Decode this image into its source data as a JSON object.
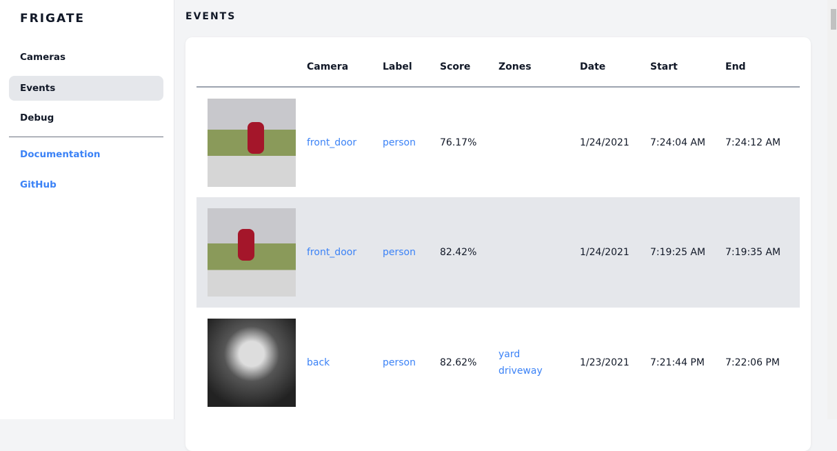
{
  "sidebar": {
    "brand": "FRIGATE",
    "items": [
      {
        "label": "Cameras"
      },
      {
        "label": "Events",
        "active": true
      },
      {
        "label": "Debug"
      }
    ],
    "links": [
      {
        "label": "Documentation"
      },
      {
        "label": "GitHub"
      }
    ]
  },
  "main": {
    "title": "EVENTS",
    "columns": [
      "",
      "Camera",
      "Label",
      "Score",
      "Zones",
      "Date",
      "Start",
      "End"
    ],
    "rows": [
      {
        "camera": "front_door",
        "label": "person",
        "score": "76.17%",
        "zones": [],
        "date": "1/24/2021",
        "start": "7:24:04 AM",
        "end": "7:24:12 AM"
      },
      {
        "camera": "front_door",
        "label": "person",
        "score": "82.42%",
        "zones": [],
        "date": "1/24/2021",
        "start": "7:19:25 AM",
        "end": "7:19:35 AM"
      },
      {
        "camera": "back",
        "label": "person",
        "score": "82.62%",
        "zones": [
          "yard",
          "driveway"
        ],
        "date": "1/23/2021",
        "start": "7:21:44 PM",
        "end": "7:22:06 PM"
      }
    ]
  },
  "colors": {
    "accent": "#3b82f6",
    "active_bg": "#e5e7eb"
  }
}
